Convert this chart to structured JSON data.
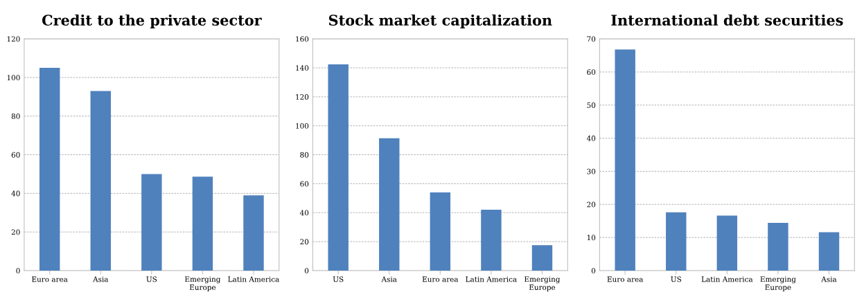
{
  "chart_data": [
    {
      "type": "bar",
      "title": "Credit to the private sector",
      "categories": [
        "Euro area",
        "Asia",
        "US",
        "Emerging\nEurope",
        "Latin America"
      ],
      "values": [
        105,
        93,
        50,
        48.6,
        39
      ],
      "color": "#4f81bd",
      "ylim": [
        0,
        120
      ],
      "yticks": [
        0,
        20,
        40,
        60,
        80,
        100,
        120
      ],
      "grid": "y"
    },
    {
      "type": "bar",
      "title": "Stock market capitalization",
      "categories": [
        "US",
        "Asia",
        "Euro area",
        "Latin America",
        "Emerging\nEurope"
      ],
      "values": [
        142.4,
        91.4,
        54,
        42,
        17.5
      ],
      "color": "#4f81bd",
      "ylim": [
        0,
        160
      ],
      "yticks": [
        0,
        20,
        40,
        60,
        80,
        100,
        120,
        140,
        160
      ],
      "grid": "y"
    },
    {
      "type": "bar",
      "title": "International debt securities",
      "categories": [
        "Euro area",
        "US",
        "Latin America",
        "Emerging\nEurope",
        "Asia"
      ],
      "values": [
        66.8,
        17.6,
        16.6,
        14.4,
        11.6
      ],
      "color": "#4f81bd",
      "ylim": [
        0,
        70
      ],
      "yticks": [
        0,
        10,
        20,
        30,
        40,
        50,
        60,
        70
      ],
      "grid": "y"
    }
  ]
}
